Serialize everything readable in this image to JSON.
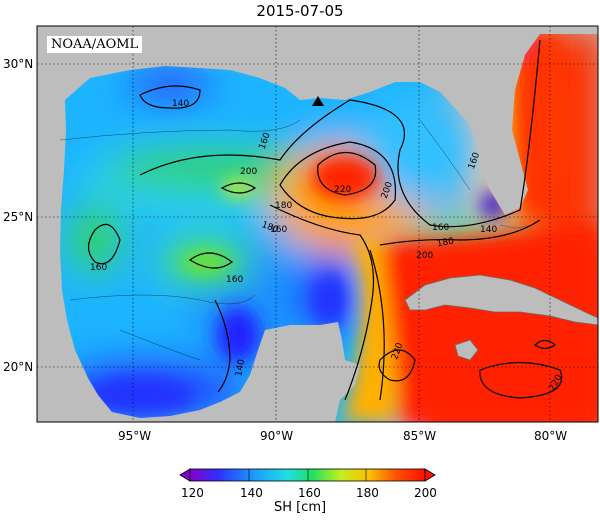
{
  "title": "2015-07-05",
  "credit": "NOAA/AOML",
  "lat_labels": [
    "30°N",
    "25°N",
    "20°N"
  ],
  "lon_labels": [
    "95°W",
    "90°W",
    "85°W",
    "80°W"
  ],
  "contour_labels": [
    "140",
    "160",
    "160",
    "180",
    "160",
    "160",
    "220",
    "200",
    "180",
    "160",
    "200",
    "180",
    "160",
    "140",
    "140",
    "220",
    "220",
    "200"
  ],
  "colorbar": {
    "title": "SH [cm]",
    "ticks": [
      "120",
      "140",
      "160",
      "180",
      "200"
    ],
    "colors": [
      "#8800cc",
      "#2040ff",
      "#20c0ff",
      "#20e060",
      "#d0f020",
      "#ffb000",
      "#ff2000"
    ]
  }
}
